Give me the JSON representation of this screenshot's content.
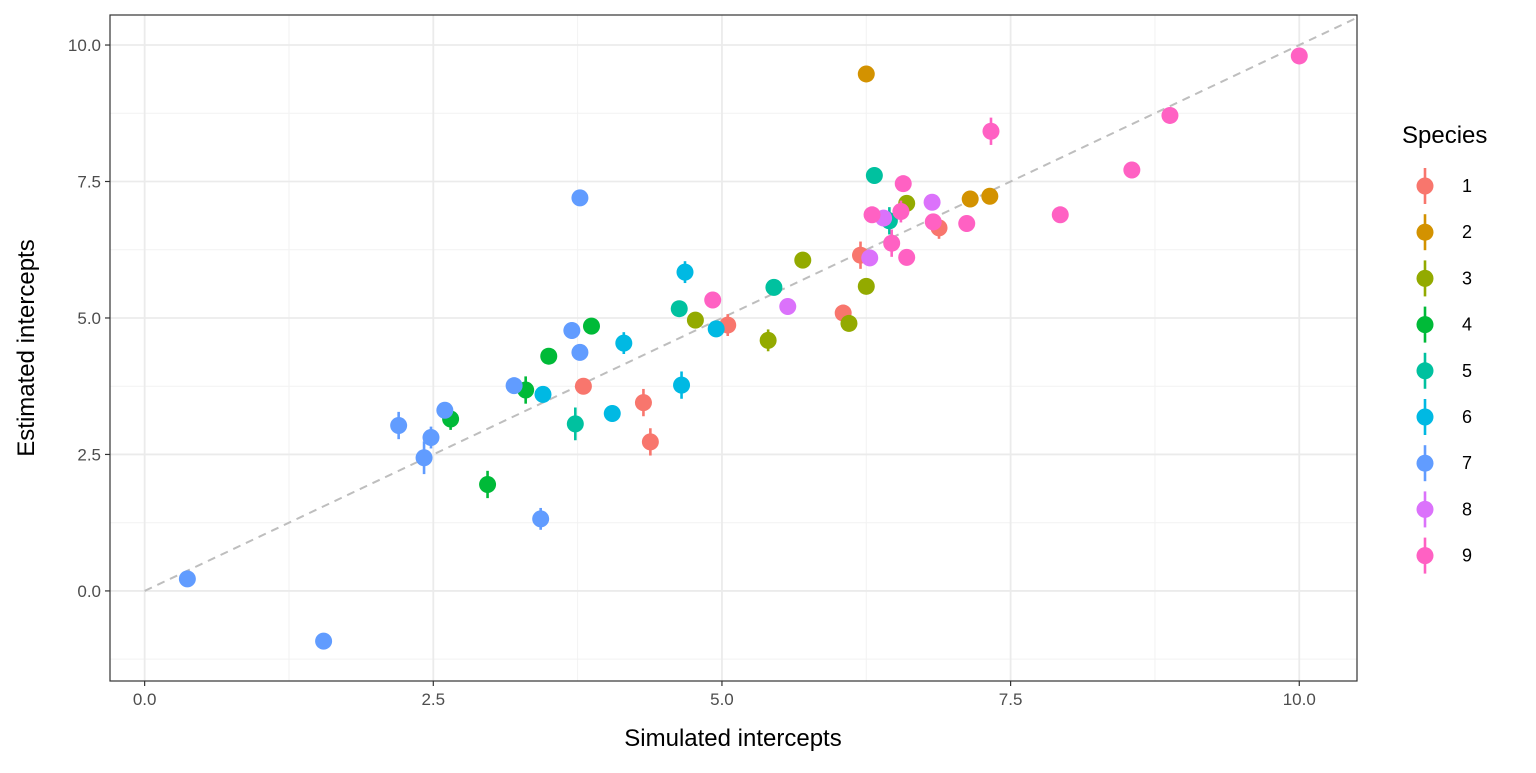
{
  "chart_data": {
    "type": "scatter",
    "title": "",
    "xlabel": "Simulated intercepts",
    "ylabel": "Estimated intercepts",
    "xlim": [
      -0.3,
      10.5
    ],
    "ylim": [
      -1.65,
      10.55
    ],
    "x_ticks": [
      0,
      2.5,
      5,
      7.5,
      10
    ],
    "x_tick_labels": [
      "0.0",
      "2.5",
      "5.0",
      "7.5",
      "10.0"
    ],
    "y_ticks": [
      0,
      2.5,
      5,
      7.5,
      10
    ],
    "y_tick_labels": [
      "0.0",
      "2.5",
      "5.0",
      "7.5",
      "10.0"
    ],
    "grid": true,
    "reference_line": {
      "type": "identity",
      "style": "dashed",
      "color": "#bebebe"
    },
    "legend": {
      "title": "Species",
      "position": "right"
    },
    "error_bars": "vertical, small",
    "series": [
      {
        "name": "1",
        "color": "#F8766D",
        "points": [
          {
            "x": 3.8,
            "y": 3.75,
            "err": 0.15
          },
          {
            "x": 4.32,
            "y": 3.45,
            "err": 0.25
          },
          {
            "x": 4.38,
            "y": 2.73,
            "err": 0.25
          },
          {
            "x": 5.05,
            "y": 4.87,
            "err": 0.2
          },
          {
            "x": 6.05,
            "y": 5.09,
            "err": 0.15
          },
          {
            "x": 6.2,
            "y": 6.15,
            "err": 0.25
          },
          {
            "x": 6.88,
            "y": 6.65,
            "err": 0.2
          }
        ]
      },
      {
        "name": "2",
        "color": "#D39200",
        "points": [
          {
            "x": 6.25,
            "y": 9.47,
            "err": 0.15
          },
          {
            "x": 7.15,
            "y": 7.18,
            "err": 0.15
          },
          {
            "x": 7.32,
            "y": 7.23,
            "err": 0.15
          }
        ]
      },
      {
        "name": "3",
        "color": "#93AA00",
        "points": [
          {
            "x": 4.77,
            "y": 4.96,
            "err": 0.15
          },
          {
            "x": 5.4,
            "y": 4.59,
            "err": 0.2
          },
          {
            "x": 5.7,
            "y": 6.06,
            "err": 0.15
          },
          {
            "x": 6.1,
            "y": 4.9,
            "err": 0.15
          },
          {
            "x": 6.25,
            "y": 5.58,
            "err": 0.15
          },
          {
            "x": 6.6,
            "y": 7.1,
            "err": 0.15
          }
        ]
      },
      {
        "name": "4",
        "color": "#00BA38",
        "points": [
          {
            "x": 2.97,
            "y": 1.95,
            "err": 0.25
          },
          {
            "x": 3.3,
            "y": 3.68,
            "err": 0.25
          },
          {
            "x": 2.65,
            "y": 3.15,
            "err": 0.2
          },
          {
            "x": 3.5,
            "y": 4.3,
            "err": 0.15
          },
          {
            "x": 3.87,
            "y": 4.85,
            "err": 0.15
          }
        ]
      },
      {
        "name": "5",
        "color": "#00C19F",
        "points": [
          {
            "x": 3.73,
            "y": 3.06,
            "err": 0.3
          },
          {
            "x": 4.63,
            "y": 5.17,
            "err": 0.15
          },
          {
            "x": 5.45,
            "y": 5.56,
            "err": 0.15
          },
          {
            "x": 6.32,
            "y": 7.61,
            "err": 0.15
          },
          {
            "x": 6.45,
            "y": 6.78,
            "err": 0.25
          }
        ]
      },
      {
        "name": "6",
        "color": "#00B9E3",
        "points": [
          {
            "x": 3.45,
            "y": 3.6,
            "err": 0.15
          },
          {
            "x": 4.05,
            "y": 3.25,
            "err": 0.15
          },
          {
            "x": 4.15,
            "y": 4.54,
            "err": 0.2
          },
          {
            "x": 4.65,
            "y": 3.77,
            "err": 0.25
          },
          {
            "x": 4.68,
            "y": 5.84,
            "err": 0.2
          },
          {
            "x": 4.95,
            "y": 4.8,
            "err": 0.15
          }
        ]
      },
      {
        "name": "7",
        "color": "#619CFF",
        "points": [
          {
            "x": 0.37,
            "y": 0.22,
            "err": 0.1
          },
          {
            "x": 1.55,
            "y": -0.92,
            "err": 0.1
          },
          {
            "x": 2.2,
            "y": 3.03,
            "err": 0.25
          },
          {
            "x": 2.42,
            "y": 2.44,
            "err": 0.3
          },
          {
            "x": 2.48,
            "y": 2.81,
            "err": 0.2
          },
          {
            "x": 2.6,
            "y": 3.31,
            "err": 0.15
          },
          {
            "x": 3.2,
            "y": 3.76,
            "err": 0.15
          },
          {
            "x": 3.43,
            "y": 1.32,
            "err": 0.2
          },
          {
            "x": 3.7,
            "y": 4.77,
            "err": 0.15
          },
          {
            "x": 3.77,
            "y": 4.37,
            "err": 0.15
          },
          {
            "x": 3.77,
            "y": 7.2,
            "err": 0.1
          }
        ]
      },
      {
        "name": "8",
        "color": "#DB72FB",
        "points": [
          {
            "x": 5.57,
            "y": 5.21,
            "err": 0.15
          },
          {
            "x": 6.28,
            "y": 6.1,
            "err": 0.15
          },
          {
            "x": 6.4,
            "y": 6.83,
            "err": 0.15
          },
          {
            "x": 6.82,
            "y": 7.12,
            "err": 0.15
          }
        ]
      },
      {
        "name": "9",
        "color": "#FF61C3",
        "points": [
          {
            "x": 4.92,
            "y": 5.33,
            "err": 0.15
          },
          {
            "x": 6.3,
            "y": 6.89,
            "err": 0.15
          },
          {
            "x": 6.47,
            "y": 6.37,
            "err": 0.25
          },
          {
            "x": 6.55,
            "y": 6.95,
            "err": 0.2
          },
          {
            "x": 6.57,
            "y": 7.46,
            "err": 0.15
          },
          {
            "x": 6.6,
            "y": 6.11,
            "err": 0.15
          },
          {
            "x": 6.83,
            "y": 6.76,
            "err": 0.15
          },
          {
            "x": 7.12,
            "y": 6.73,
            "err": 0.15
          },
          {
            "x": 7.33,
            "y": 8.42,
            "err": 0.25
          },
          {
            "x": 7.93,
            "y": 6.89,
            "err": 0.15
          },
          {
            "x": 8.55,
            "y": 7.71,
            "err": 0.15
          },
          {
            "x": 8.88,
            "y": 8.71,
            "err": 0.15
          },
          {
            "x": 10.0,
            "y": 9.8,
            "err": 0.15
          }
        ]
      }
    ]
  }
}
